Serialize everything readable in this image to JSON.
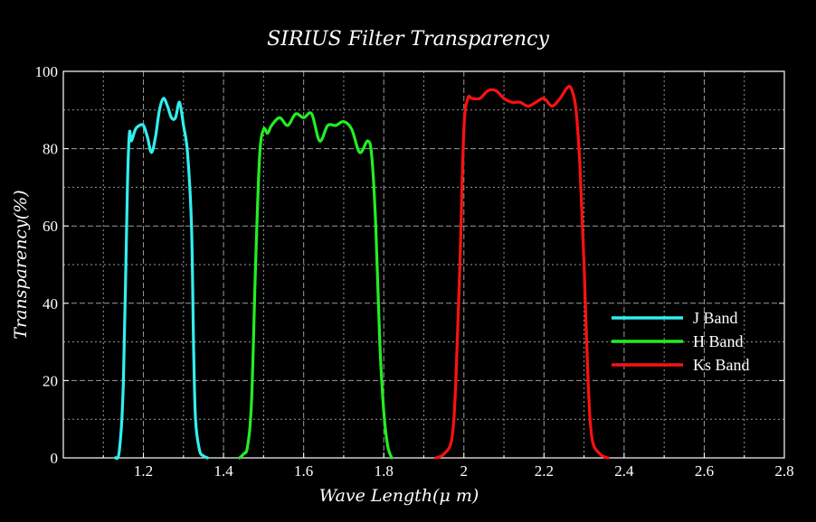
{
  "chart_data": {
    "type": "line",
    "title": "SIRIUS Filter Transparency",
    "xlabel": "Wave Length(μ m)",
    "ylabel": "Transparency(%)",
    "xlim": [
      1.0,
      2.8
    ],
    "ylim": [
      0,
      100
    ],
    "xticks": [
      1.2,
      1.4,
      1.6,
      1.8,
      2.0,
      2.2,
      2.4,
      2.6,
      2.8
    ],
    "xtick_labels": [
      "1.2",
      "1.4",
      "1.6",
      "1.8",
      "2",
      "2.2",
      "2.4",
      "2.6",
      "2.8"
    ],
    "yticks": [
      0,
      20,
      40,
      60,
      80,
      100
    ],
    "ytick_labels": [
      "0",
      "20",
      "40",
      "60",
      "80",
      "100"
    ],
    "grid": true,
    "legend_position": "right",
    "background": "#000000",
    "series": [
      {
        "name": "J Band",
        "color": "#33eeee",
        "x": [
          1.13,
          1.14,
          1.15,
          1.16,
          1.165,
          1.17,
          1.18,
          1.19,
          1.2,
          1.21,
          1.22,
          1.23,
          1.24,
          1.25,
          1.26,
          1.27,
          1.28,
          1.29,
          1.3,
          1.31,
          1.32,
          1.325,
          1.33,
          1.34,
          1.35,
          1.36
        ],
        "y": [
          0,
          2,
          20,
          70,
          84,
          82,
          85,
          86,
          86,
          83,
          79,
          83,
          90,
          93,
          91,
          88,
          88,
          92,
          86,
          79,
          60,
          30,
          10,
          2,
          0.5,
          0
        ]
      },
      {
        "name": "H Band",
        "color": "#22ee22",
        "x": [
          1.44,
          1.45,
          1.46,
          1.47,
          1.48,
          1.49,
          1.5,
          1.51,
          1.52,
          1.54,
          1.56,
          1.58,
          1.6,
          1.62,
          1.64,
          1.66,
          1.68,
          1.7,
          1.72,
          1.74,
          1.76,
          1.77,
          1.78,
          1.79,
          1.8,
          1.81,
          1.82
        ],
        "y": [
          0,
          1,
          3,
          15,
          50,
          78,
          85,
          84,
          86,
          88,
          86,
          89,
          88,
          89,
          82,
          86,
          86,
          87,
          85,
          79,
          82,
          78,
          60,
          30,
          12,
          3,
          0
        ]
      },
      {
        "name": "Ks Band",
        "color": "#ff1111",
        "x": [
          1.93,
          1.95,
          1.97,
          1.98,
          1.99,
          2.0,
          2.01,
          2.02,
          2.04,
          2.06,
          2.08,
          2.1,
          2.12,
          2.14,
          2.16,
          2.18,
          2.2,
          2.22,
          2.24,
          2.26,
          2.27,
          2.28,
          2.29,
          2.3,
          2.31,
          2.32,
          2.34,
          2.36
        ],
        "y": [
          0,
          1,
          5,
          20,
          50,
          85,
          93,
          93,
          93,
          95,
          95,
          93,
          92,
          92,
          91,
          92,
          93,
          91,
          93,
          96,
          95,
          90,
          75,
          50,
          20,
          5,
          1,
          0
        ]
      }
    ]
  }
}
